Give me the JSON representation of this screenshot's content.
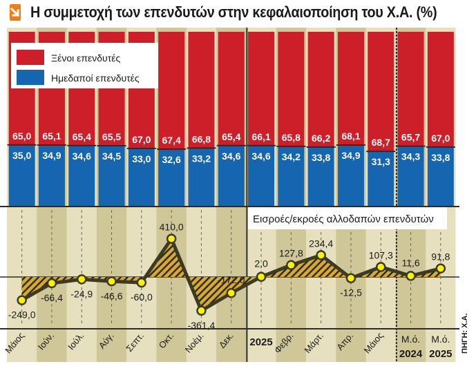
{
  "title": "Η συμμετοχή των επενδυτών στην κεφαλαιοποίηση του Χ.Α. (%)",
  "source": "ΠΗΓΗ: Χ.Α.",
  "icon": "arrow-down-right-icon",
  "colors": {
    "foreign": "#cc1f2a",
    "domestic": "#1565b0",
    "line": "#3b3b25",
    "marker_fill": "#fff200",
    "hatch": "#d7aa2f",
    "panel": "#cfc797",
    "column_light": "#e6e0bf"
  },
  "chart_data": [
    {
      "type": "bar",
      "stacked": true,
      "categories": [
        "Μάιος",
        "Ιούν.",
        "Ιούλ.",
        "Αύγ.",
        "Σεπτ.",
        "Οκτ.",
        "Νοέμ.",
        "Δεκ.",
        "2025",
        "Φεβρ.",
        "Μάρτ.",
        "Απρ.",
        "Μάιος",
        "Μ.ό. 2024",
        "Μ.ό. 2025"
      ],
      "series": [
        {
          "name": "Ημεδαποί επενδυτές",
          "values": [
            35.0,
            34.9,
            34.6,
            34.5,
            33.0,
            32.6,
            33.2,
            34.6,
            34.6,
            34.2,
            33.8,
            34.9,
            31.3,
            34.3,
            33.8
          ],
          "labels": [
            "35,0",
            "34,9",
            "34,6",
            "34,5",
            "33,0",
            "32,6",
            "33,2",
            "34,6",
            "34,6",
            "34,2",
            "33,8",
            "34,9",
            "31,3",
            "34,3",
            "33,8"
          ]
        },
        {
          "name": "Ξένοι επενδυτές",
          "values": [
            65.0,
            65.1,
            65.4,
            65.5,
            67.0,
            67.4,
            66.8,
            65.4,
            66.1,
            65.8,
            66.2,
            68.1,
            68.7,
            65.7,
            67.0
          ],
          "labels": [
            "65,0",
            "65,1",
            "65,4",
            "65,5",
            "67,0",
            "67,4",
            "66,8",
            "65,4",
            "66,1",
            "65,8",
            "66,2",
            "68,1",
            "68,7",
            "65,7",
            "67,0"
          ]
        }
      ],
      "ylim": [
        0,
        100
      ]
    },
    {
      "type": "line",
      "title": "Εισροές/εκροές αλλοδαπών επενδυτών",
      "series": [
        {
          "values": [
            -249.0,
            -66.4,
            -24.9,
            -46.6,
            -60.0,
            410.0,
            -361.4,
            -172.0,
            2.0,
            127.8,
            234.4,
            -12.5,
            107.3,
            11.6,
            91.8
          ],
          "labels": [
            "-249,0",
            "-66,4",
            "-24,9",
            "-46,6",
            "-60,0",
            "410,0",
            "-361,4",
            "-172,0",
            "2,0",
            "127,8",
            "234,4",
            "-12,5",
            "107,3",
            "11,6",
            "91,8"
          ]
        }
      ]
    }
  ],
  "x_axis": {
    "labels": [
      "Μάιος",
      "Ιούν.",
      "Ιούλ.",
      "Αύγ.",
      "Σεπτ.",
      "Οκτ.",
      "Νοέμ.",
      "Δεκ.",
      "2025",
      "Φεβρ.",
      "Μάρτ.",
      "Απρ.",
      "Μάιος",
      "Μ.ό.",
      "Μ.ό."
    ],
    "sublabels": [
      "",
      "",
      "",
      "",
      "",
      "",
      "",
      "",
      "",
      "",
      "",
      "",
      "",
      "2024",
      "2025"
    ]
  }
}
